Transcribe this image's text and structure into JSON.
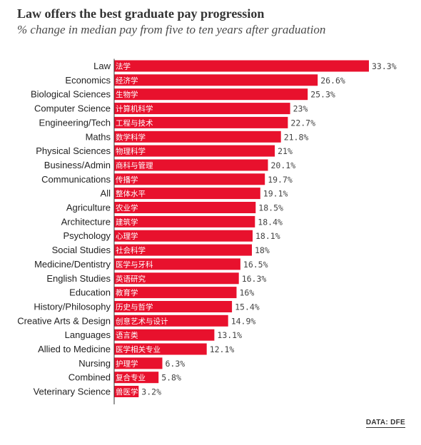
{
  "title": "Law offers the best graduate pay progression",
  "subtitle": "% change in median pay from five to ten years after graduation",
  "source": "DATA: DFE",
  "colors": {
    "bar": "#e8112d",
    "axis": "#333333",
    "label": "#222222",
    "value": "#444444",
    "chinese": "#ffffff"
  },
  "chart_data": {
    "type": "bar",
    "orientation": "horizontal",
    "categories": [
      "Law",
      "Economics",
      "Biological Sciences",
      "Computer Science",
      "Engineering/Tech",
      "Maths",
      "Physical Sciences",
      "Business/Admin",
      "Communications",
      "All",
      "Agriculture",
      "Architecture",
      "Psychology",
      "Social Studies",
      "Medicine/Dentistry",
      "English Studies",
      "Education",
      "History/Philosophy",
      "Creative Arts & Design",
      "Languages",
      "Allied to Medicine",
      "Nursing",
      "Combined",
      "Veterinary Science"
    ],
    "chinese_labels": [
      "法学",
      "经济学",
      "生物学",
      "计算机科学",
      "工程与技术",
      "数学科学",
      "物理科学",
      "商科与管理",
      "传播学",
      "整体水平",
      "农业学",
      "建筑学",
      "心理学",
      "社会科学",
      "医学与牙科",
      "英语研究",
      "教育学",
      "历史与哲学",
      "创意艺术与设计",
      "语言类",
      "医学相关专业",
      "护理学",
      "复合专业",
      "兽医学"
    ],
    "values": [
      33.3,
      26.6,
      25.3,
      23,
      22.7,
      21.8,
      21,
      20.1,
      19.7,
      19.1,
      18.5,
      18.4,
      18.1,
      18,
      16.5,
      16.3,
      16,
      15.4,
      14.9,
      13.1,
      12.1,
      6.3,
      5.8,
      3.2
    ],
    "value_labels": [
      "33.3%",
      "26.6%",
      "25.3%",
      "23%",
      "22.7%",
      "21.8%",
      "21%",
      "20.1%",
      "19.7%",
      "19.1%",
      "18.5%",
      "18.4%",
      "18.1%",
      "18%",
      "16.5%",
      "16.3%",
      "16%",
      "15.4%",
      "14.9%",
      "13.1%",
      "12.1%",
      "6.3%",
      "5.8%",
      "3.2%"
    ],
    "unit": "%",
    "xlim": [
      0,
      33.3
    ],
    "grid": false,
    "legend": "none"
  }
}
